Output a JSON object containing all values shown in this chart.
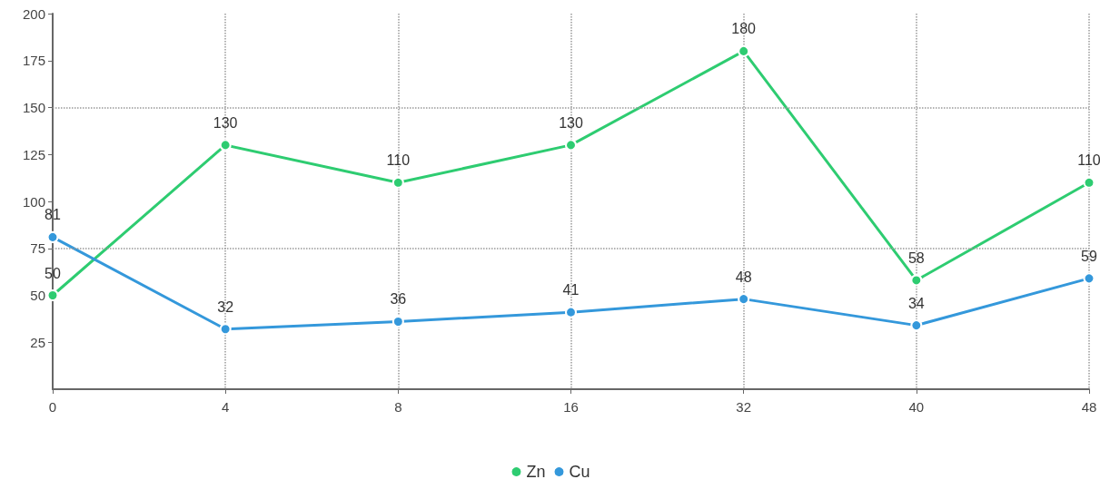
{
  "chart_data": {
    "type": "line",
    "categories": [
      "0",
      "4",
      "8",
      "16",
      "32",
      "40",
      "48"
    ],
    "series": [
      {
        "name": "Zn",
        "color": "#2ecc71",
        "values": [
          50,
          130,
          110,
          130,
          180,
          58,
          110
        ]
      },
      {
        "name": "Cu",
        "color": "#3498db",
        "values": [
          81,
          32,
          36,
          41,
          48,
          34,
          59
        ]
      }
    ],
    "ylim": [
      0,
      200
    ],
    "yticks": [
      25,
      50,
      75,
      100,
      125,
      150,
      175,
      200
    ],
    "grid": "x",
    "ref_lines": [
      {
        "axis": "y",
        "value": 75,
        "line_style": "dotted",
        "color": "#999999"
      },
      {
        "axis": "y",
        "value": 150,
        "line_style": "dotted",
        "color": "#999999"
      }
    ],
    "legend": "bottom",
    "marker": "circle",
    "line_style": "solid",
    "data_labels": true
  }
}
